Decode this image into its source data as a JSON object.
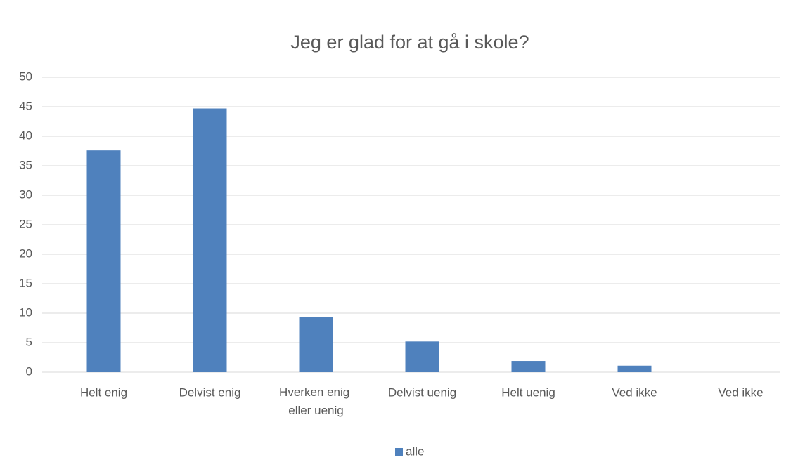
{
  "chart_data": {
    "type": "bar",
    "title": "Jeg er glad for at gå i skole?",
    "categories": [
      "Helt enig",
      "Delvist enig",
      "Hverken enig eller uenig",
      "Delvist uenig",
      "Helt uenig",
      "Ved ikke",
      "Ved ikke"
    ],
    "series": [
      {
        "name": "alle",
        "color": "#4f81bd",
        "values": [
          37.6,
          44.7,
          9.3,
          5.2,
          1.9,
          1.1,
          0
        ]
      }
    ],
    "ylim": [
      0,
      50
    ],
    "yticks": [
      0,
      5,
      10,
      15,
      20,
      25,
      30,
      35,
      40,
      45,
      50
    ],
    "grid": true,
    "legend": "bottom"
  }
}
